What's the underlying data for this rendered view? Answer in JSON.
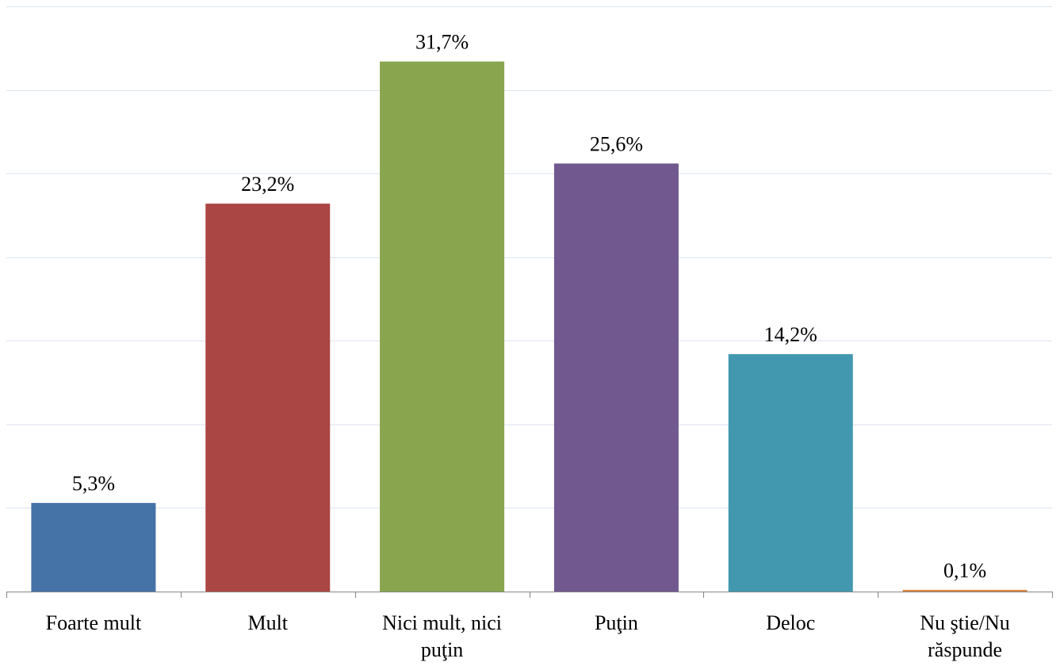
{
  "chart_data": {
    "type": "bar",
    "categories": [
      [
        "Foarte mult"
      ],
      [
        "Mult"
      ],
      [
        "Nici mult, nici",
        "puţin"
      ],
      [
        "Puţin"
      ],
      [
        "Deloc"
      ],
      [
        "Nu ştie/Nu",
        "răspunde"
      ]
    ],
    "values": [
      5.3,
      23.2,
      31.7,
      25.6,
      14.2,
      0.1
    ],
    "value_labels": [
      "5,3%",
      "23,2%",
      "31,7%",
      "25,6%",
      "14,2%",
      "0,1%"
    ],
    "colors": [
      "#4572A7",
      "#AA4643",
      "#89A54E",
      "#71588F",
      "#4198AF",
      "#DB843D"
    ],
    "ylim": [
      0,
      35
    ],
    "grid": true,
    "gridline_color": "#dde3ee",
    "axis_color": "#868686",
    "title": "",
    "xlabel": "",
    "ylabel": ""
  }
}
